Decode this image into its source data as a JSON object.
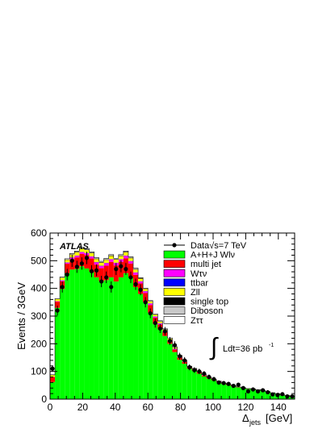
{
  "chart_data": {
    "type": "bar",
    "title": "",
    "xlabel": "Δ_jets [GeV]",
    "xlabel_main": "Δ",
    "xlabel_sub": "jets",
    "xlabel_unit": "[GeV]",
    "ylabel": "Events / 3GeV",
    "xlim": [
      0,
      150
    ],
    "ylim": [
      0,
      600
    ],
    "xticks": [
      "0",
      "20",
      "40",
      "60",
      "80",
      "100",
      "120",
      "140"
    ],
    "yticks": [
      "0",
      "100",
      "200",
      "300",
      "400",
      "500",
      "600"
    ],
    "grid": false,
    "legend_position": "top-right",
    "experiment_label": "ATLAS",
    "luminosity_label": "Ldt=36 pb",
    "luminosity_superscript": "-1",
    "luminosity_integral": "∫",
    "bin_width": 3,
    "bin_edges_start": 0,
    "stack": [
      {
        "name": "A+H+J Wlν",
        "color": "#00ff00",
        "values": [
          62,
          330,
          398,
          455,
          468,
          470,
          480,
          472,
          460,
          440,
          425,
          430,
          440,
          425,
          440,
          455,
          440,
          405,
          380,
          350,
          312,
          272,
          252,
          228,
          200,
          170,
          142,
          128,
          110,
          103,
          92,
          82,
          74,
          68,
          61,
          55,
          50,
          46,
          42,
          40,
          37,
          36,
          33,
          31,
          26,
          22,
          19,
          14,
          12,
          10
        ]
      },
      {
        "name": "multi jet",
        "color": "#ff0000",
        "values": [
          18,
          22,
          28,
          34,
          38,
          42,
          45,
          48,
          48,
          46,
          48,
          52,
          56,
          58,
          56,
          54,
          50,
          44,
          38,
          33,
          28,
          22,
          18,
          14,
          11,
          9,
          8,
          6,
          5,
          4,
          4,
          3,
          3,
          2,
          2,
          2,
          2,
          2,
          1,
          1,
          1,
          1,
          1,
          1,
          1,
          1,
          1,
          1,
          1,
          1
        ]
      },
      {
        "name": "Wτν",
        "color": "#ff00ff",
        "values": [
          1,
          2,
          3,
          4,
          5,
          6,
          6,
          7,
          7,
          8,
          8,
          9,
          9,
          9,
          9,
          9,
          8,
          8,
          7,
          6,
          5,
          4,
          3,
          3,
          2,
          2,
          2,
          1,
          1,
          1,
          1,
          1,
          1,
          1,
          1,
          0,
          0,
          0,
          0,
          0,
          0,
          0,
          0,
          0,
          0,
          0,
          0,
          0,
          0,
          0
        ]
      },
      {
        "name": "ttbar",
        "color": "#0000ff",
        "values": [
          0,
          0,
          1,
          1,
          1,
          1,
          1,
          1,
          1,
          1,
          1,
          1,
          1,
          1,
          1,
          1,
          1,
          1,
          1,
          1,
          1,
          1,
          1,
          1,
          1,
          1,
          1,
          1,
          1,
          1,
          0,
          0,
          0,
          0,
          0,
          0,
          0,
          0,
          0,
          0,
          0,
          0,
          0,
          0,
          0,
          0,
          0,
          0,
          0,
          0
        ]
      },
      {
        "name": "Zll",
        "color": "#ffff00",
        "values": [
          5,
          7,
          8,
          9,
          10,
          11,
          11,
          11,
          11,
          11,
          11,
          11,
          11,
          11,
          11,
          11,
          10,
          10,
          9,
          8,
          7,
          6,
          6,
          5,
          4,
          4,
          3,
          3,
          2,
          2,
          2,
          2,
          1,
          1,
          1,
          1,
          1,
          1,
          1,
          0,
          0,
          0,
          0,
          0,
          0,
          0,
          0,
          0,
          0,
          0
        ]
      },
      {
        "name": "single top",
        "color": "#000000",
        "values": [
          1,
          1,
          1,
          1,
          1,
          2,
          2,
          2,
          2,
          2,
          2,
          2,
          2,
          2,
          2,
          2,
          2,
          2,
          2,
          1,
          1,
          1,
          1,
          1,
          1,
          1,
          1,
          1,
          0,
          0,
          0,
          0,
          0,
          0,
          0,
          0,
          0,
          0,
          0,
          0,
          0,
          0,
          0,
          0,
          0,
          0,
          0,
          0,
          0,
          0
        ]
      },
      {
        "name": "Diboson",
        "color": "#c8c8c8",
        "values": [
          0,
          0,
          1,
          1,
          1,
          1,
          1,
          1,
          1,
          1,
          1,
          1,
          1,
          1,
          1,
          1,
          1,
          1,
          1,
          1,
          1,
          1,
          1,
          1,
          1,
          1,
          0,
          0,
          0,
          0,
          0,
          0,
          0,
          0,
          0,
          0,
          0,
          0,
          0,
          0,
          0,
          0,
          0,
          0,
          0,
          0,
          0,
          0,
          0,
          0
        ]
      },
      {
        "name": "Zττ",
        "color": "#ffffff",
        "values": [
          1,
          1,
          1,
          2,
          2,
          2,
          2,
          2,
          2,
          2,
          2,
          2,
          2,
          2,
          2,
          2,
          2,
          2,
          1,
          1,
          1,
          1,
          1,
          1,
          1,
          1,
          1,
          0,
          0,
          0,
          0,
          0,
          0,
          0,
          0,
          0,
          0,
          0,
          0,
          0,
          0,
          0,
          0,
          0,
          0,
          0,
          0,
          0,
          0,
          0
        ]
      }
    ],
    "data_series": {
      "name": "Data√s=7 TeV",
      "x": [
        1.5,
        4.5,
        7.5,
        10.5,
        13.5,
        16.5,
        19.5,
        22.5,
        25.5,
        28.5,
        31.5,
        34.5,
        37.5,
        40.5,
        43.5,
        46.5,
        49.5,
        52.5,
        55.5,
        58.5,
        61.5,
        64.5,
        67.5,
        70.5,
        73.5,
        76.5,
        79.5,
        82.5,
        85.5,
        88.5,
        91.5,
        94.5,
        97.5,
        100.5,
        103.5,
        106.5,
        109.5,
        112.5,
        115.5,
        118.5,
        121.5,
        124.5,
        127.5,
        130.5,
        133.5,
        136.5,
        139.5,
        142.5,
        145.5,
        148.5
      ],
      "y": [
        110,
        320,
        405,
        450,
        500,
        478,
        490,
        510,
        462,
        465,
        425,
        440,
        405,
        470,
        480,
        470,
        440,
        415,
        395,
        350,
        310,
        275,
        255,
        245,
        210,
        195,
        155,
        140,
        115,
        105,
        100,
        92,
        80,
        72,
        60,
        58,
        55,
        48,
        52,
        40,
        28,
        35,
        28,
        32,
        25,
        17,
        15,
        18,
        10,
        10
      ]
    },
    "legend_order": [
      "data",
      "A+H+J Wlν",
      "multi jet",
      "Wτν",
      "ttbar",
      "Zll",
      "single top",
      "Diboson",
      "Zττ"
    ]
  }
}
